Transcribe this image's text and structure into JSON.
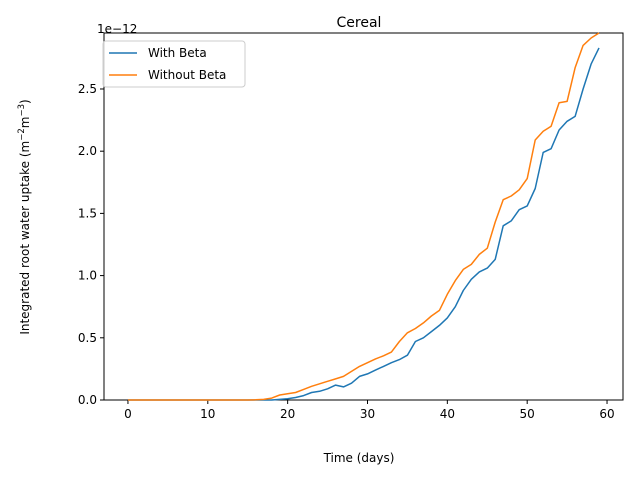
{
  "chart_data": {
    "type": "line",
    "title": "Cereal",
    "xlabel": "Time (days)",
    "ylabel_main": "Integrated root water uptake (m",
    "ylabel_sup1": "−2",
    "ylabel_mid": "m",
    "ylabel_sup2": "−3",
    "ylabel_end": ")",
    "y_offset_label": "1e−12",
    "xlim": [
      -3,
      62
    ],
    "ylim": [
      0,
      2.95
    ],
    "xticks": [
      0,
      10,
      20,
      30,
      40,
      50,
      60
    ],
    "yticks": [
      0.0,
      0.5,
      1.0,
      1.5,
      2.0,
      2.5
    ],
    "ytick_labels": [
      "0.0",
      "0.5",
      "1.0",
      "1.5",
      "2.0",
      "2.5"
    ],
    "legend_position": "top-left",
    "series": [
      {
        "name": "With Beta",
        "color": "#1f77b4",
        "x": [
          0,
          1,
          2,
          3,
          4,
          5,
          6,
          7,
          8,
          9,
          10,
          11,
          12,
          13,
          14,
          15,
          16,
          17,
          18,
          19,
          20,
          21,
          22,
          23,
          24,
          25,
          26,
          27,
          28,
          29,
          30,
          31,
          32,
          33,
          34,
          35,
          36,
          37,
          38,
          39,
          40,
          41,
          42,
          43,
          44,
          45,
          46,
          47,
          48,
          49,
          50,
          51,
          52,
          53,
          54,
          55,
          56,
          57,
          58,
          59
        ],
        "values": [
          0,
          0,
          0,
          0,
          0,
          0,
          0,
          0,
          0,
          0,
          0,
          0,
          0,
          0,
          0,
          0,
          0,
          0,
          0,
          0.005,
          0.01,
          0.02,
          0.035,
          0.06,
          0.07,
          0.09,
          0.12,
          0.105,
          0.135,
          0.19,
          0.21,
          0.24,
          0.27,
          0.3,
          0.325,
          0.36,
          0.47,
          0.5,
          0.55,
          0.6,
          0.66,
          0.75,
          0.88,
          0.97,
          1.03,
          1.06,
          1.13,
          1.4,
          1.44,
          1.53,
          1.56,
          1.7,
          1.99,
          2.02,
          2.17,
          2.24,
          2.28,
          2.5,
          2.7,
          2.83
        ]
      },
      {
        "name": "Without Beta",
        "color": "#ff7f0e",
        "x": [
          0,
          1,
          2,
          3,
          4,
          5,
          6,
          7,
          8,
          9,
          10,
          11,
          12,
          13,
          14,
          15,
          16,
          17,
          18,
          19,
          20,
          21,
          22,
          23,
          24,
          25,
          26,
          27,
          28,
          29,
          30,
          31,
          32,
          33,
          34,
          35,
          36,
          37,
          38,
          39,
          40,
          41,
          42,
          43,
          44,
          45,
          46,
          47,
          48,
          49,
          50,
          51,
          52,
          53,
          54,
          55,
          56,
          57,
          58,
          59
        ],
        "values": [
          0,
          0,
          0,
          0,
          0,
          0,
          0,
          0,
          0,
          0,
          0,
          0,
          0,
          0,
          0,
          0,
          0.002,
          0.005,
          0.015,
          0.04,
          0.05,
          0.06,
          0.085,
          0.11,
          0.13,
          0.15,
          0.17,
          0.19,
          0.23,
          0.27,
          0.3,
          0.33,
          0.355,
          0.385,
          0.47,
          0.54,
          0.575,
          0.62,
          0.675,
          0.72,
          0.85,
          0.96,
          1.05,
          1.09,
          1.17,
          1.22,
          1.43,
          1.61,
          1.64,
          1.69,
          1.78,
          2.09,
          2.16,
          2.2,
          2.39,
          2.4,
          2.67,
          2.85,
          2.91,
          2.95
        ]
      }
    ]
  }
}
